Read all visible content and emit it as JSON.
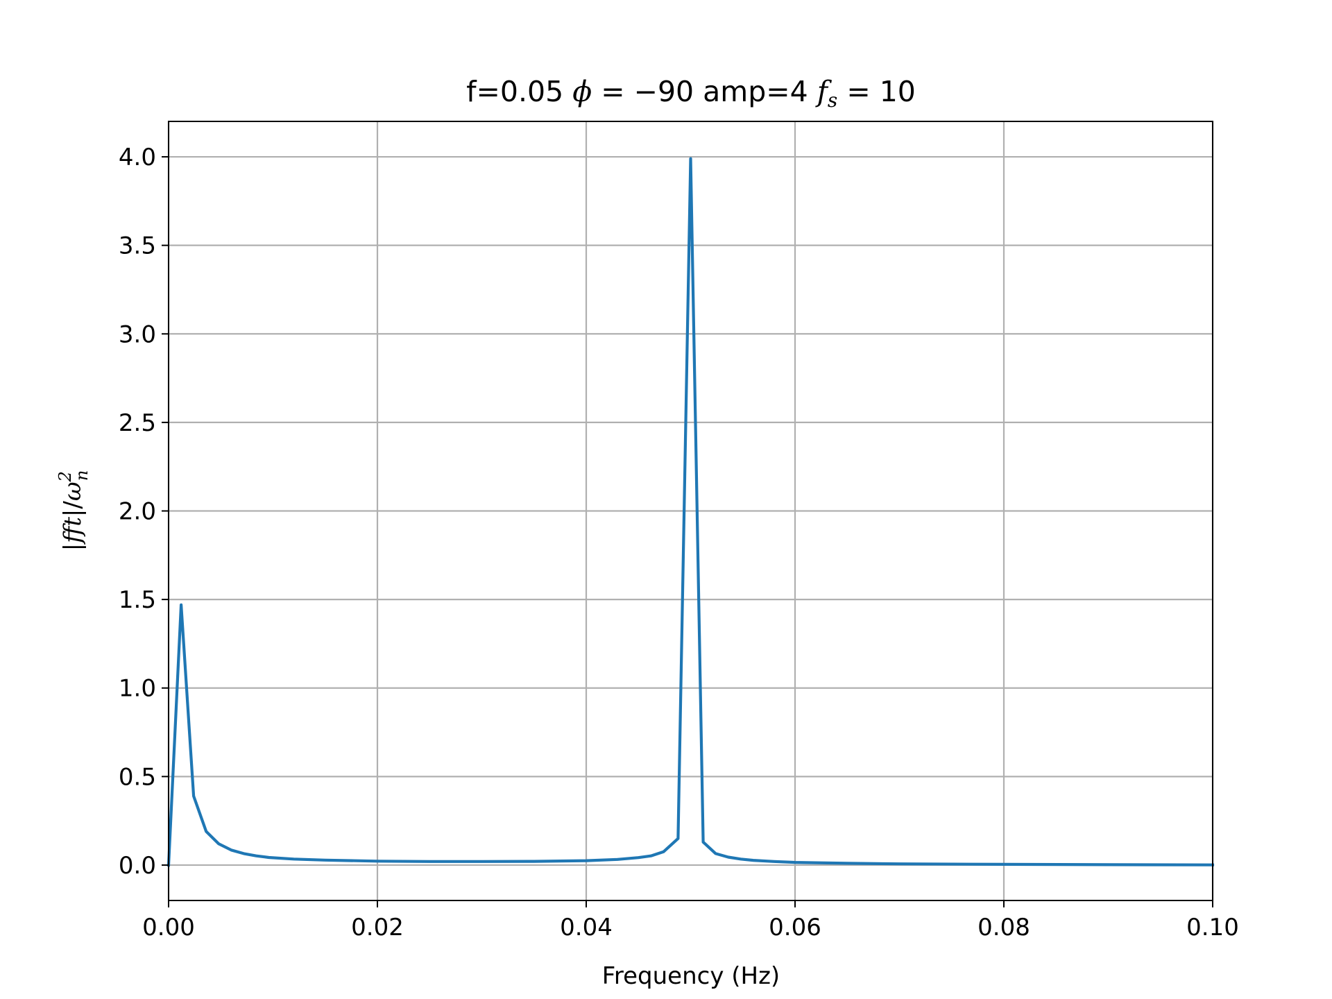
{
  "chart_data": {
    "type": "line",
    "title": {
      "prefix": "f=0.05 ",
      "phi_symbol": "ϕ",
      "phi_rest": " = −90 amp=4 ",
      "fs_symbol": "f",
      "fs_subscript": "s",
      "fs_rest": " = 10"
    },
    "xlabel": "Frequency (Hz)",
    "ylabel": {
      "prefix": "|",
      "fft": "fft",
      "middle": "|/",
      "omega": "ω",
      "sup": "2",
      "sub": "n"
    },
    "xlim": [
      0,
      0.1
    ],
    "ylim": [
      -0.2,
      4.2
    ],
    "x_ticks": [
      "0.00",
      "0.02",
      "0.04",
      "0.06",
      "0.08",
      "0.10"
    ],
    "y_ticks": [
      "0.0",
      "0.5",
      "1.0",
      "1.5",
      "2.0",
      "2.5",
      "3.0",
      "3.5",
      "4.0"
    ],
    "grid": true,
    "series": [
      {
        "color": "#1f77b4",
        "x": [
          0,
          0.0012,
          0.0024,
          0.0036,
          0.0048,
          0.006,
          0.0072,
          0.0084,
          0.0096,
          0.012,
          0.015,
          0.02,
          0.025,
          0.03,
          0.035,
          0.04,
          0.043,
          0.045,
          0.0462,
          0.0474,
          0.0488,
          0.05,
          0.0512,
          0.0524,
          0.0536,
          0.0548,
          0.056,
          0.058,
          0.06,
          0.065,
          0.07,
          0.08,
          0.09,
          0.1
        ],
        "y": [
          0.0,
          1.47,
          0.39,
          0.19,
          0.12,
          0.085,
          0.065,
          0.052,
          0.043,
          0.034,
          0.028,
          0.022,
          0.02,
          0.02,
          0.021,
          0.025,
          0.032,
          0.042,
          0.052,
          0.075,
          0.15,
          3.99,
          0.13,
          0.065,
          0.045,
          0.034,
          0.027,
          0.02,
          0.015,
          0.01,
          0.007,
          0.004,
          0.002,
          0.001
        ]
      }
    ]
  }
}
